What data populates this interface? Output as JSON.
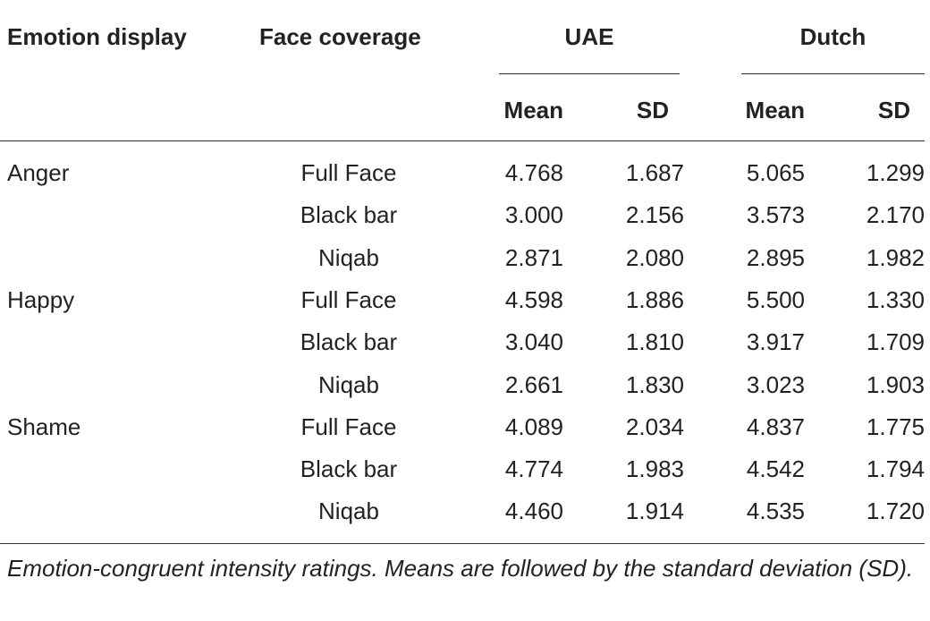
{
  "table": {
    "headers": {
      "emotion_display": "Emotion display",
      "face_coverage": "Face coverage",
      "group_uae": "UAE",
      "group_dutch": "Dutch",
      "uae_mean": "Mean",
      "uae_sd": "SD",
      "dutch_mean": "Mean",
      "dutch_sd": "SD"
    },
    "rows": [
      {
        "emotion": "Anger",
        "coverage": "Full Face",
        "uae_mean": "4.768",
        "uae_sd": "1.687",
        "dutch_mean": "5.065",
        "dutch_sd": "1.299"
      },
      {
        "emotion": "",
        "coverage": "Black bar",
        "uae_mean": "3.000",
        "uae_sd": "2.156",
        "dutch_mean": "3.573",
        "dutch_sd": "2.170"
      },
      {
        "emotion": "",
        "coverage": "Niqab",
        "uae_mean": "2.871",
        "uae_sd": "2.080",
        "dutch_mean": "2.895",
        "dutch_sd": "1.982"
      },
      {
        "emotion": "Happy",
        "coverage": "Full Face",
        "uae_mean": "4.598",
        "uae_sd": "1.886",
        "dutch_mean": "5.500",
        "dutch_sd": "1.330"
      },
      {
        "emotion": "",
        "coverage": "Black bar",
        "uae_mean": "3.040",
        "uae_sd": "1.810",
        "dutch_mean": "3.917",
        "dutch_sd": "1.709"
      },
      {
        "emotion": "",
        "coverage": "Niqab",
        "uae_mean": "2.661",
        "uae_sd": "1.830",
        "dutch_mean": "3.023",
        "dutch_sd": "1.903"
      },
      {
        "emotion": "Shame",
        "coverage": "Full Face",
        "uae_mean": "4.089",
        "uae_sd": "2.034",
        "dutch_mean": "4.837",
        "dutch_sd": "1.775"
      },
      {
        "emotion": "",
        "coverage": "Black bar",
        "uae_mean": "4.774",
        "uae_sd": "1.983",
        "dutch_mean": "4.542",
        "dutch_sd": "1.794"
      },
      {
        "emotion": "",
        "coverage": "Niqab",
        "uae_mean": "4.460",
        "uae_sd": "1.914",
        "dutch_mean": "4.535",
        "dutch_sd": "1.720"
      }
    ]
  },
  "caption": "Emotion-congruent intensity ratings. Means are followed by the standard deviation (SD)."
}
